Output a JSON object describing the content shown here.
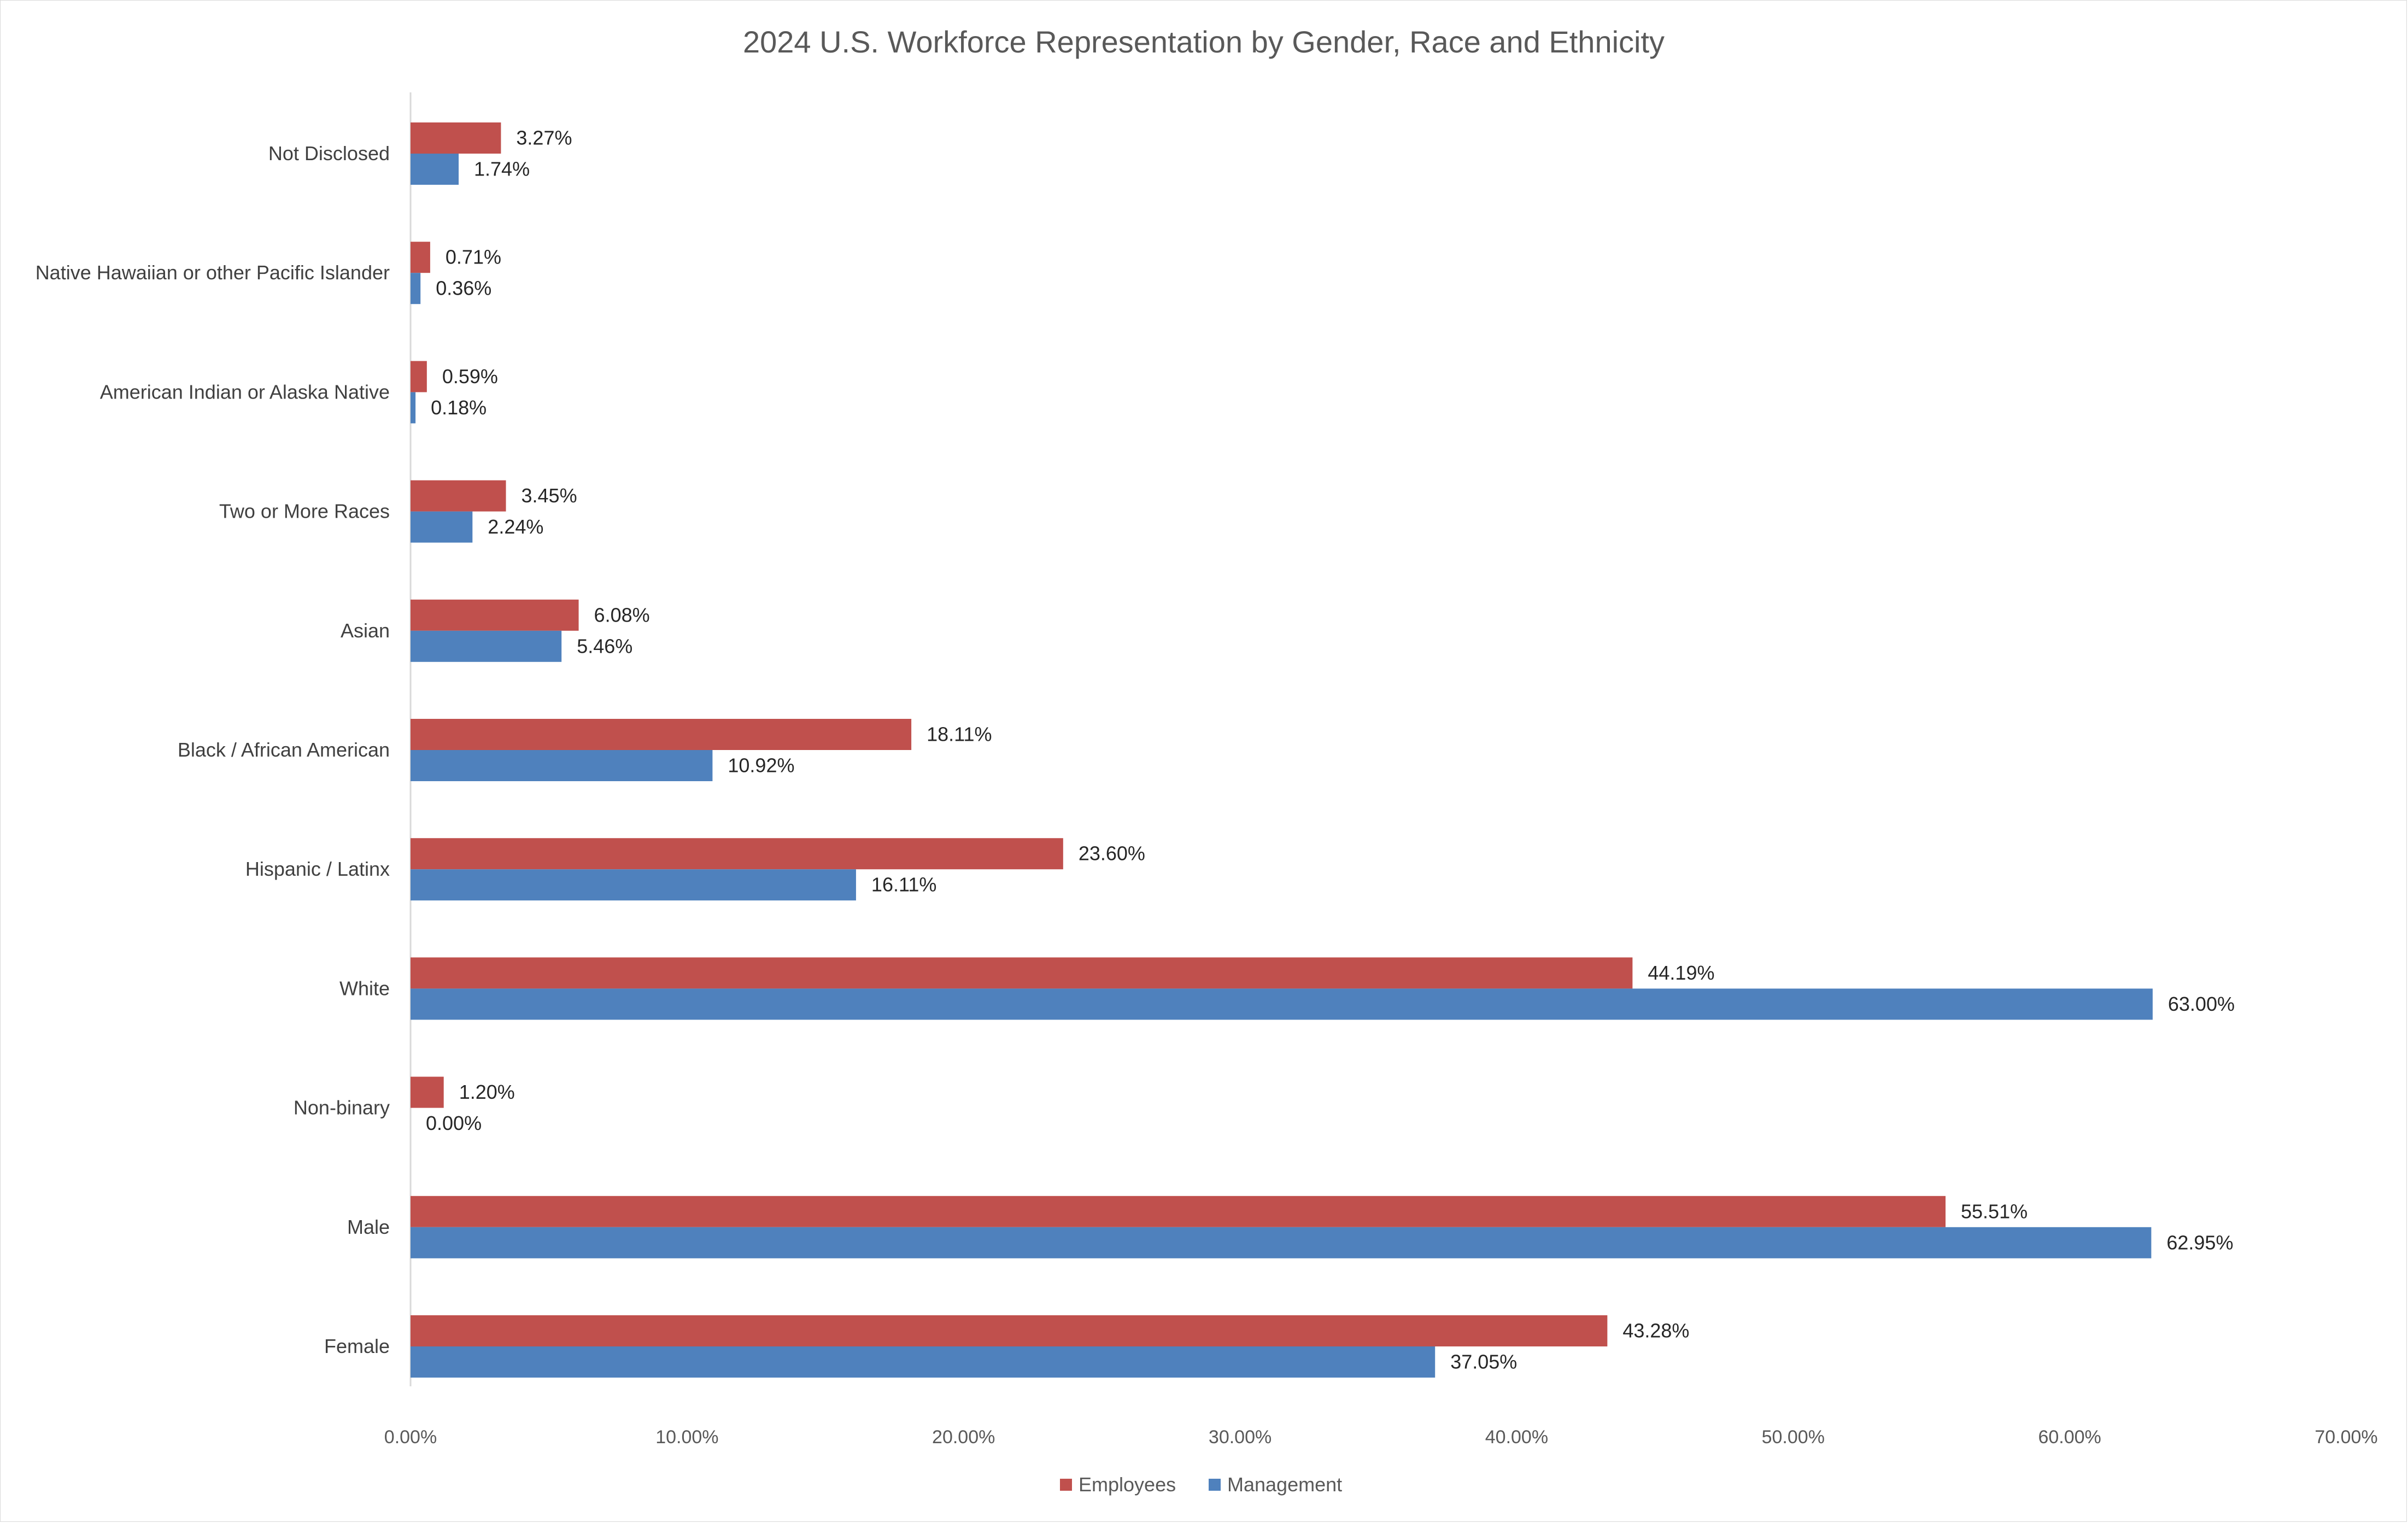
{
  "chart_data": {
    "type": "bar",
    "orientation": "horizontal",
    "title": "2024 U.S. Workforce Representation by Gender, Race and Ethnicity",
    "categories": [
      "Not Disclosed",
      "Native Hawaiian or other Pacific Islander",
      "American Indian or Alaska Native",
      "Two or More Races",
      "Asian",
      "Black / African American",
      "Hispanic / Latinx",
      "White",
      "Non-binary",
      "Male",
      "Female"
    ],
    "series": [
      {
        "name": "Employees",
        "color": "#c0504d",
        "values": [
          3.27,
          0.71,
          0.59,
          3.45,
          6.08,
          18.11,
          23.6,
          44.19,
          1.2,
          55.51,
          43.28
        ],
        "labels": [
          "3.27%",
          "0.71%",
          "0.59%",
          "3.45%",
          "6.08%",
          "18.11%",
          "23.60%",
          "44.19%",
          "1.20%",
          "55.51%",
          "43.28%"
        ]
      },
      {
        "name": "Management",
        "color": "#4f81bd",
        "values": [
          1.74,
          0.36,
          0.18,
          2.24,
          5.46,
          10.92,
          16.11,
          63.0,
          0.0,
          62.95,
          37.05
        ],
        "labels": [
          "1.74%",
          "0.36%",
          "0.18%",
          "2.24%",
          "5.46%",
          "10.92%",
          "16.11%",
          "63.00%",
          "0.00%",
          "62.95%",
          "37.05%"
        ]
      }
    ],
    "xlim": [
      0,
      70
    ],
    "xticks": [
      "0.00%",
      "10.00%",
      "20.00%",
      "30.00%",
      "40.00%",
      "50.00%",
      "60.00%",
      "70.00%"
    ],
    "grid": false,
    "legend": "bottom"
  }
}
